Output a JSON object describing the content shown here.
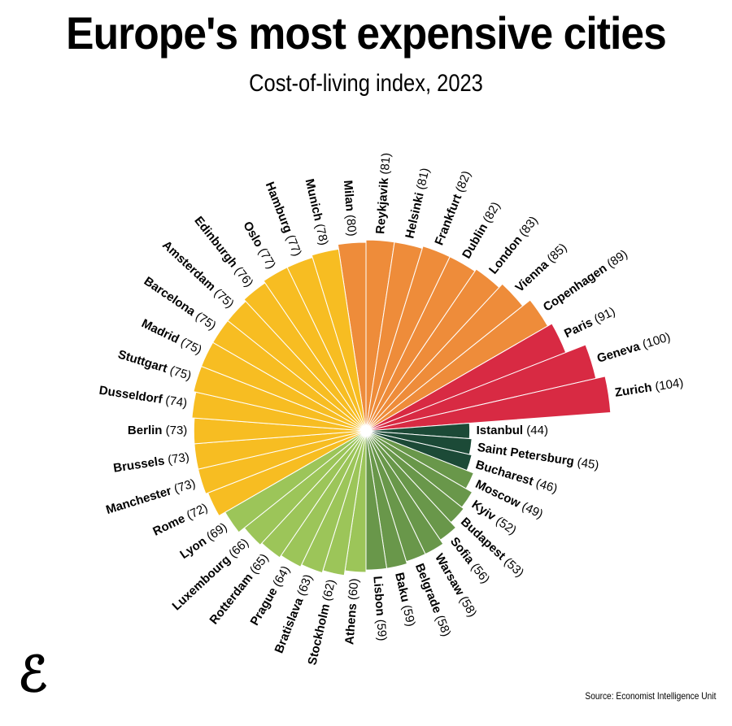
{
  "title": "Europe's most expensive cities",
  "subtitle": "Cost-of-living index, 2023",
  "source": "Source: Economist Intelligence Unit",
  "logo": "E",
  "chart_data": {
    "type": "bar",
    "layout": "radial",
    "title": "Europe's most expensive cities",
    "subtitle": "Cost-of-living index, 2023",
    "categories": [
      "Milan",
      "Reykjavik",
      "Helsinki",
      "Frankfurt",
      "Dublin",
      "London",
      "Vienna",
      "Copenhagen",
      "Paris",
      "Geneva",
      "Zurich",
      "Istanbul",
      "Saint Petersburg",
      "Bucharest",
      "Moscow",
      "Kyiv",
      "Budapest",
      "Sofia",
      "Warsaw",
      "Belgrade",
      "Baku",
      "Lisbon",
      "Athens",
      "Stockholm",
      "Bratislava",
      "Prague",
      "Rotterdam",
      "Luxembourg",
      "Lyon",
      "Rome",
      "Manchester",
      "Brussels",
      "Berlin",
      "Dusseldorf",
      "Stuttgart",
      "Madrid",
      "Barcelona",
      "Amsterdam",
      "Edinburgh",
      "Oslo",
      "Hamburg",
      "Munich"
    ],
    "values": [
      80,
      81,
      81,
      82,
      82,
      83,
      85,
      89,
      91,
      100,
      104,
      44,
      45,
      46,
      49,
      52,
      53,
      56,
      58,
      58,
      59,
      59,
      60,
      62,
      63,
      64,
      65,
      66,
      69,
      72,
      73,
      73,
      73,
      74,
      75,
      75,
      75,
      75,
      76,
      77,
      77,
      78
    ],
    "color_bands": [
      {
        "min": 90,
        "color": "#d82a43"
      },
      {
        "min": 80,
        "color": "#ee8c3a"
      },
      {
        "min": 70,
        "color": "#f7bd22"
      },
      {
        "min": 60,
        "color": "#9cc559"
      },
      {
        "min": 47,
        "color": "#69974a"
      },
      {
        "min": 0,
        "color": "#1c4a37"
      }
    ]
  }
}
